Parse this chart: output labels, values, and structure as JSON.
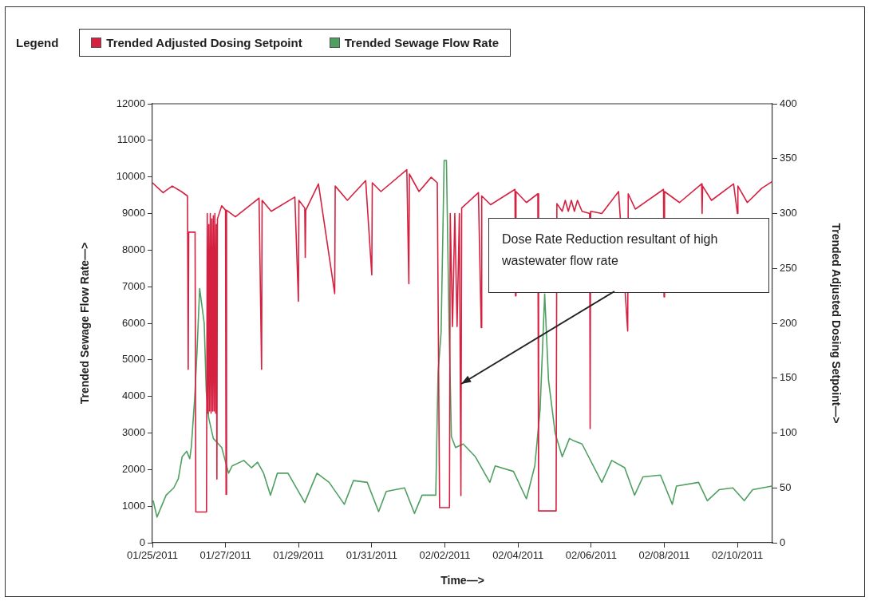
{
  "chart_data": {
    "type": "line",
    "xlabel": "Time—>",
    "ylabel": "Trended Sewage Flow Rate—>",
    "y2label": "Trended Adjusted Dosing Setpoint—>",
    "legend_title": "Legend",
    "legend": "top",
    "grid": false,
    "xlim": [
      "2011-01-25",
      "2011-02-10T23:00"
    ],
    "xticks": [
      {
        "value": "2011-01-25",
        "label": "01/25/2011"
      },
      {
        "value": "2011-01-27",
        "label": "01/27/2011"
      },
      {
        "value": "2011-01-29",
        "label": "01/29/2011"
      },
      {
        "value": "2011-01-31",
        "label": "01/31/2011"
      },
      {
        "value": "2011-02-02",
        "label": "02/02/2011"
      },
      {
        "value": "2011-02-04",
        "label": "02/04/2011"
      },
      {
        "value": "2011-02-06",
        "label": "02/06/2011"
      },
      {
        "value": "2011-02-08",
        "label": "02/08/2011"
      },
      {
        "value": "2011-02-10",
        "label": "02/10/2011"
      }
    ],
    "ylim": [
      0,
      12000
    ],
    "yticks": [
      0,
      1000,
      2000,
      3000,
      4000,
      5000,
      6000,
      7000,
      8000,
      9000,
      10000,
      11000,
      12000
    ],
    "y2lim": [
      0,
      400
    ],
    "y2ticks": [
      0,
      50,
      100,
      150,
      200,
      250,
      300,
      350,
      400
    ],
    "annotations": [
      "Dose Rate Reduction resultant of high wastewater flow rate"
    ],
    "series": [
      {
        "name": "Trended Adjusted Dosing Setpoint",
        "color": "#d62040",
        "axis": "y2",
        "x": [
          "2011-01-25T00:00",
          "2011-01-25T07:00",
          "2011-01-25T13:00",
          "2011-01-25T19:00",
          "2011-01-25T23:00",
          "2011-01-25T23:30",
          "2011-01-25T23:50",
          "2011-01-26T04:00",
          "2011-01-26T04:30",
          "2011-01-26T11:30",
          "2011-01-26T12:00",
          "2011-01-26T12:30",
          "2011-01-26T13:00",
          "2011-01-26T13:30",
          "2011-01-26T14:00",
          "2011-01-26T14:30",
          "2011-01-26T15:00",
          "2011-01-26T15:30",
          "2011-01-26T16:00",
          "2011-01-26T16:30",
          "2011-01-26T17:00",
          "2011-01-26T17:30",
          "2011-01-26T18:00",
          "2011-01-26T18:20",
          "2011-01-26T18:40",
          "2011-01-26T21:30",
          "2011-01-27T00:00",
          "2011-01-27T00:20",
          "2011-01-27T00:40",
          "2011-01-27T06:30",
          "2011-01-27T22:00",
          "2011-01-27T23:40",
          "2011-01-28T00:00",
          "2011-01-28T06:00",
          "2011-01-28T21:30",
          "2011-01-28T23:50",
          "2011-01-29T00:10",
          "2011-01-29T04:00",
          "2011-01-29T04:20",
          "2011-01-29T04:40",
          "2011-01-29T13:00",
          "2011-01-29T23:40",
          "2011-01-30T00:00",
          "2011-01-30T08:00",
          "2011-01-30T20:00",
          "2011-01-31T00:00",
          "2011-01-31T00:20",
          "2011-01-31T06:00",
          "2011-01-31T23:00",
          "2011-02-01T00:20",
          "2011-02-01T00:40",
          "2011-02-01T07:00",
          "2011-02-01T15:00",
          "2011-02-01T19:00",
          "2011-02-01T20:30",
          "2011-02-02T03:00",
          "2011-02-02T03:30",
          "2011-02-02T05:00",
          "2011-02-02T06:30",
          "2011-02-02T08:00",
          "2011-02-02T09:30",
          "2011-02-02T10:30",
          "2011-02-02T11:00",
          "2011-02-02T22:00",
          "2011-02-02T23:50",
          "2011-02-03T00:10",
          "2011-02-03T06:00",
          "2011-02-03T22:00",
          "2011-02-03T22:20",
          "2011-02-03T22:40",
          "2011-02-04T05:30",
          "2011-02-04T13:00",
          "2011-02-04T13:30",
          "2011-02-05T01:00",
          "2011-02-05T01:30",
          "2011-02-05T05:00",
          "2011-02-05T07:00",
          "2011-02-05T09:00",
          "2011-02-05T11:00",
          "2011-02-05T13:00",
          "2011-02-05T15:00",
          "2011-02-05T18:00",
          "2011-02-05T23:00",
          "2011-02-05T23:20",
          "2011-02-05T23:40",
          "2011-02-06T07:00",
          "2011-02-06T18:00",
          "2011-02-07T00:00",
          "2011-02-07T00:20",
          "2011-02-07T05:00",
          "2011-02-07T23:30",
          "2011-02-07T23:50",
          "2011-02-08T00:10",
          "2011-02-08T10:00",
          "2011-02-09T00:30",
          "2011-02-09T00:50",
          "2011-02-09T01:10",
          "2011-02-09T07:00",
          "2011-02-09T21:30",
          "2011-02-10T00:00",
          "2011-02-10T00:20",
          "2011-02-10T06:30",
          "2011-02-10T16:00",
          "2011-02-10T22:40"
        ],
        "values": [
          328,
          319,
          325,
          320,
          316,
          158,
          283,
          283,
          28,
          28,
          300,
          118,
          290,
          120,
          300,
          118,
          295,
          120,
          298,
          120,
          300,
          118,
          290,
          58,
          295,
          307,
          303,
          44,
          303,
          297,
          314,
          158,
          312,
          302,
          315,
          220,
          312,
          305,
          260,
          303,
          327,
          227,
          325,
          312,
          330,
          244,
          328,
          320,
          340,
          236,
          336,
          320,
          333,
          328,
          32,
          32,
          300,
          197,
          300,
          197,
          300,
          43,
          305,
          319,
          196,
          316,
          308,
          322,
          225,
          320,
          310,
          318,
          29,
          29,
          309,
          302,
          312,
          302,
          312,
          302,
          312,
          302,
          300,
          104,
          302,
          300,
          320,
          193,
          318,
          304,
          322,
          224,
          320,
          310,
          327,
          300,
          325,
          312,
          327,
          300,
          325,
          310,
          323,
          329
        ]
      },
      {
        "name": "Trended Sewage Flow Rate",
        "color": "#4fa060",
        "axis": "y",
        "x": [
          "2011-01-25T00:30",
          "2011-01-25T03:00",
          "2011-01-25T06:00",
          "2011-01-25T09:00",
          "2011-01-25T14:00",
          "2011-01-25T17:00",
          "2011-01-25T19:30",
          "2011-01-25T22:30",
          "2011-01-26T00:30",
          "2011-01-26T01:30",
          "2011-01-26T03:45",
          "2011-01-26T05:15",
          "2011-01-26T07:00",
          "2011-01-26T10:00",
          "2011-01-26T11:20",
          "2011-01-26T13:00",
          "2011-01-26T16:00",
          "2011-01-26T21:30",
          "2011-01-27T02:00",
          "2011-01-27T04:20",
          "2011-01-27T12:00",
          "2011-01-27T17:00",
          "2011-01-27T21:00",
          "2011-01-28T01:00",
          "2011-01-28T05:30",
          "2011-01-28T10:00",
          "2011-01-28T17:00",
          "2011-01-29T04:00",
          "2011-01-29T12:00",
          "2011-01-29T20:00",
          "2011-01-30T06:00",
          "2011-01-30T12:00",
          "2011-01-30T21:00",
          "2011-01-31T04:30",
          "2011-01-31T09:30",
          "2011-01-31T21:30",
          "2011-02-01T04:00",
          "2011-02-01T09:00",
          "2011-02-01T18:00",
          "2011-02-01T19:30",
          "2011-02-01T21:30",
          "2011-02-01T23:30",
          "2011-02-02T01:00",
          "2011-02-02T02:45",
          "2011-02-02T04:15",
          "2011-02-02T07:00",
          "2011-02-02T12:00",
          "2011-02-02T20:00",
          "2011-02-03T05:30",
          "2011-02-03T09:00",
          "2011-02-03T21:00",
          "2011-02-04T05:30",
          "2011-02-04T11:00",
          "2011-02-04T14:30",
          "2011-02-04T17:30",
          "2011-02-04T20:00",
          "2011-02-05T00:20",
          "2011-02-05T05:00",
          "2011-02-05T09:45",
          "2011-02-05T12:00",
          "2011-02-05T18:00",
          "2011-02-06T07:00",
          "2011-02-06T13:30",
          "2011-02-06T22:00",
          "2011-02-07T04:30",
          "2011-02-07T10:00",
          "2011-02-07T21:30",
          "2011-02-08T05:15",
          "2011-02-08T08:00",
          "2011-02-08T22:30",
          "2011-02-09T04:15",
          "2011-02-09T12:00",
          "2011-02-09T21:00",
          "2011-02-10T04:30",
          "2011-02-10T10:00",
          "2011-02-10T22:40"
        ],
        "values": [
          1150,
          700,
          1000,
          1300,
          1500,
          1750,
          2350,
          2500,
          2300,
          2600,
          3950,
          5200,
          6950,
          6000,
          4150,
          3400,
          2850,
          2600,
          1900,
          2100,
          2250,
          2050,
          2200,
          1900,
          1300,
          1900,
          1900,
          1100,
          1900,
          1650,
          1050,
          1700,
          1650,
          850,
          1400,
          1500,
          800,
          1300,
          1300,
          4650,
          5750,
          10450,
          10450,
          5900,
          2900,
          2600,
          2700,
          2350,
          1650,
          2100,
          1950,
          1200,
          2100,
          3650,
          6800,
          4450,
          3000,
          2350,
          2850,
          2800,
          2700,
          1650,
          2250,
          2050,
          1300,
          1800,
          1850,
          1050,
          1550,
          1650,
          1150,
          1450,
          1500,
          1150,
          1450,
          1550
        ]
      }
    ]
  }
}
